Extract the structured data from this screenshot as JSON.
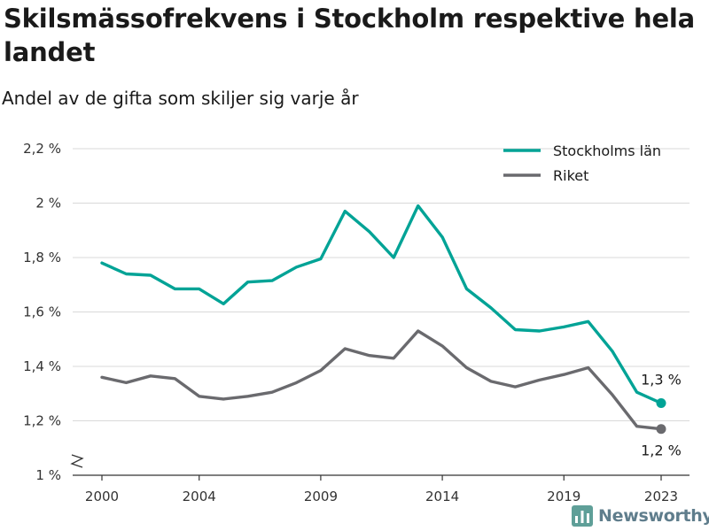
{
  "header": {
    "title": "Skilsmässofrekvens i Stockholm respektive hela landet",
    "subtitle": "Andel av de gifta som skiljer sig varje år"
  },
  "brand": {
    "name": "Newsworthy",
    "logo_icon": "bar-chart-logo-icon"
  },
  "colors": {
    "stockholm": "#00a396",
    "riket": "#6a6a6e",
    "grid": "#d9d9d9",
    "axis": "#333333"
  },
  "chart_data": {
    "type": "line",
    "title": "Skilsmässofrekvens i Stockholm respektive hela landet",
    "subtitle": "Andel av de gifta som skiljer sig varje år",
    "xlabel": "",
    "ylabel": "",
    "x": [
      2000,
      2001,
      2002,
      2003,
      2004,
      2005,
      2006,
      2007,
      2008,
      2009,
      2010,
      2011,
      2012,
      2013,
      2014,
      2015,
      2016,
      2017,
      2018,
      2019,
      2020,
      2021,
      2022,
      2023
    ],
    "x_ticks": [
      2000,
      2004,
      2009,
      2014,
      2019,
      2023
    ],
    "x_tick_labels": [
      "2000",
      "2004",
      "2009",
      "2014",
      "2019",
      "2023"
    ],
    "ylim": [
      1.0,
      2.2
    ],
    "y_axis_break": true,
    "y_ticks": [
      1.0,
      1.2,
      1.4,
      1.6,
      1.8,
      2.0,
      2.2
    ],
    "y_tick_labels": [
      "1 %",
      "1,2 %",
      "1,4 %",
      "1,6 %",
      "1,8 %",
      "2 %",
      "2,2 %"
    ],
    "grid": true,
    "legend_position": "top-right",
    "series": [
      {
        "name": "Stockholms län",
        "color": "#00a396",
        "values": [
          1.78,
          1.74,
          1.735,
          1.685,
          1.685,
          1.63,
          1.71,
          1.715,
          1.765,
          1.795,
          1.97,
          1.895,
          1.8,
          1.99,
          1.875,
          1.685,
          1.615,
          1.535,
          1.53,
          1.545,
          1.565,
          1.455,
          1.305,
          1.265
        ],
        "end_label": "1,3 %"
      },
      {
        "name": "Riket",
        "color": "#6a6a6e",
        "values": [
          1.36,
          1.34,
          1.365,
          1.355,
          1.29,
          1.28,
          1.29,
          1.305,
          1.34,
          1.385,
          1.465,
          1.44,
          1.43,
          1.53,
          1.475,
          1.395,
          1.345,
          1.325,
          1.35,
          1.37,
          1.395,
          1.295,
          1.18,
          1.17
        ],
        "end_label": "1,2 %"
      }
    ]
  }
}
